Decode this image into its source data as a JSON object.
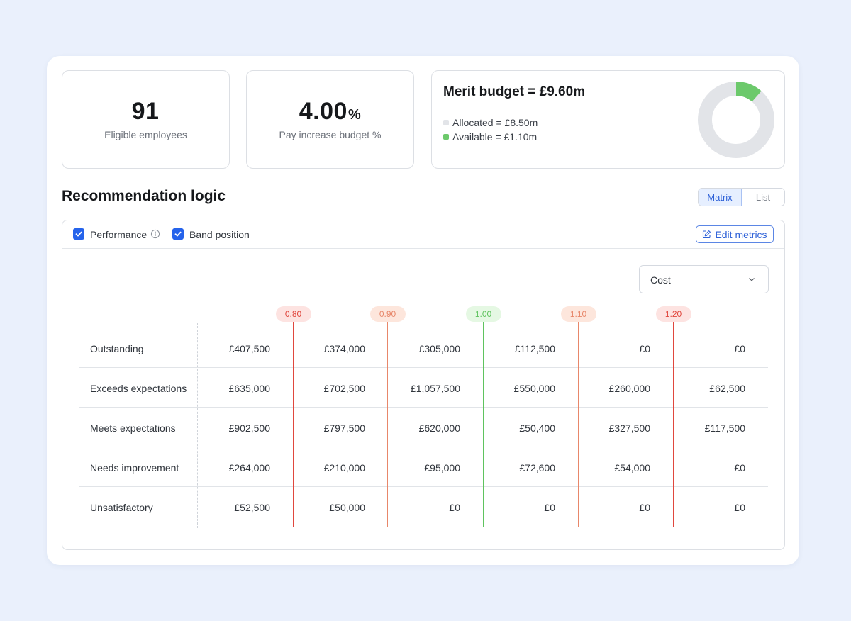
{
  "kpis": [
    {
      "value": "91",
      "unit": "",
      "label": "Eligible employees"
    },
    {
      "value": "4.00",
      "unit": "%",
      "label": "Pay increase budget %"
    }
  ],
  "budget": {
    "title": "Merit budget = £9.60m",
    "allocated_label": "Allocated = £8.50m",
    "available_label": "Available = £1.10m",
    "allocated_value": 8.5,
    "available_value": 1.1,
    "colors": {
      "allocated": "#e2e4e8",
      "available": "#6cc96b"
    }
  },
  "section": {
    "title": "Recommendation logic"
  },
  "view_toggle": {
    "options": [
      "Matrix",
      "List"
    ],
    "selected": "Matrix"
  },
  "filters": {
    "performance_label": "Performance",
    "band_position_label": "Band position",
    "performance_checked": true,
    "band_position_checked": true,
    "edit_label": "Edit metrics"
  },
  "metric_select": {
    "value": "Cost"
  },
  "thresholds": [
    {
      "label": "0.80",
      "color": "#e0473e",
      "bg": "#fde3e1"
    },
    {
      "label": "0.90",
      "color": "#e8876a",
      "bg": "#fde6dc"
    },
    {
      "label": "1.00",
      "color": "#5fc35e",
      "bg": "#e5f8e3"
    },
    {
      "label": "1.10",
      "color": "#e8876a",
      "bg": "#fde6dc"
    },
    {
      "label": "1.20",
      "color": "#e0473e",
      "bg": "#fde3e1"
    }
  ],
  "matrix": {
    "rows": [
      {
        "label": "Outstanding",
        "values": [
          "£407,500",
          "£374,000",
          "£305,000",
          "£112,500",
          "£0",
          "£0"
        ]
      },
      {
        "label": "Exceeds expectations",
        "values": [
          "£635,000",
          "£702,500",
          "£1,057,500",
          "£550,000",
          "£260,000",
          "£62,500"
        ]
      },
      {
        "label": "Meets expectations",
        "values": [
          "£902,500",
          "£797,500",
          "£620,000",
          "£50,400",
          "£327,500",
          "£117,500"
        ]
      },
      {
        "label": "Needs improvement",
        "values": [
          "£264,000",
          "£210,000",
          "£95,000",
          "£72,600",
          "£54,000",
          "£0"
        ]
      },
      {
        "label": "Unsatisfactory",
        "values": [
          "£52,500",
          "£50,000",
          "£0",
          "£0",
          "£0",
          "£0"
        ]
      }
    ]
  }
}
